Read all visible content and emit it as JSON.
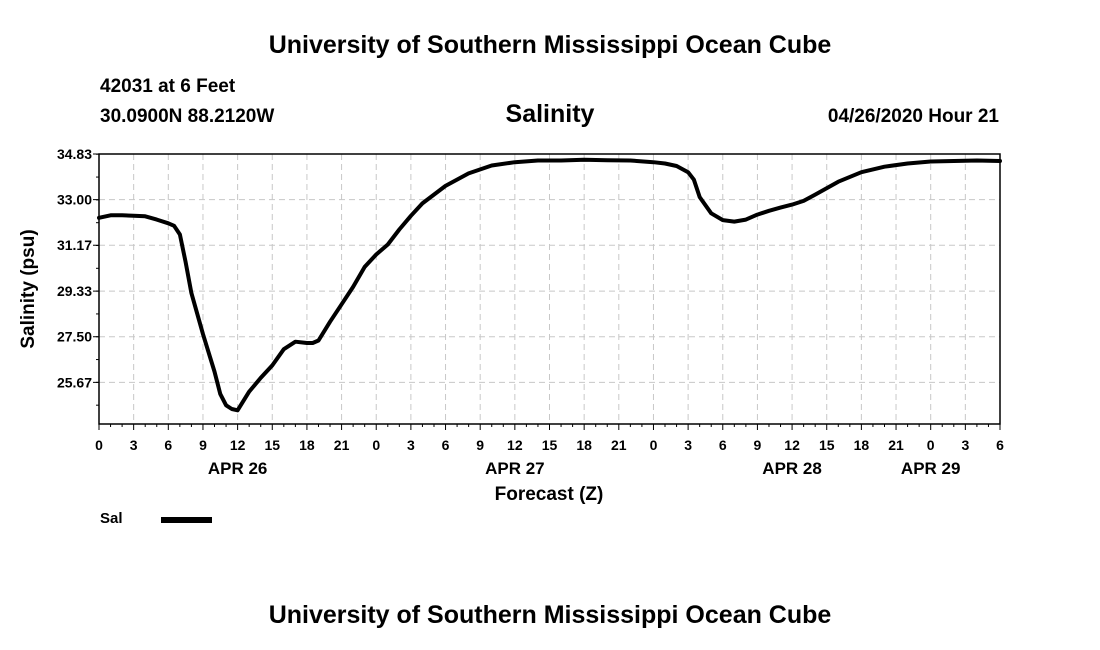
{
  "header": {
    "title_top": "University of Southern Mississippi Ocean Cube",
    "station": "42031 at 6 Feet",
    "location": "30.0900N 88.2120W",
    "variable": "Salinity",
    "timestamp": "04/26/2020 Hour 21"
  },
  "footer": {
    "title_bottom": "University of Southern Mississippi Ocean Cube"
  },
  "legend": {
    "label": "Sal",
    "color": "#000000"
  },
  "chart_data": {
    "type": "line",
    "title": "Salinity",
    "xlabel": "Forecast (Z)",
    "ylabel": "Salinity (psu)",
    "ylim": [
      24.0,
      34.83
    ],
    "xlim_hours": [
      0,
      78
    ],
    "x_start": "APR 26 00Z",
    "y_ticks": [
      "34.83",
      "33.00",
      "31.17",
      "29.33",
      "27.50",
      "25.67"
    ],
    "y_tick_values": [
      34.83,
      33.0,
      31.17,
      29.33,
      27.5,
      25.67
    ],
    "x_tick_labels": [
      "0",
      "3",
      "6",
      "9",
      "12",
      "15",
      "18",
      "21",
      "0",
      "3",
      "6",
      "9",
      "12",
      "15",
      "18",
      "21",
      "0",
      "3",
      "6",
      "9",
      "12",
      "15",
      "18",
      "21",
      "0",
      "3",
      "6"
    ],
    "date_labels": [
      {
        "text": "APR 26",
        "hour": 12
      },
      {
        "text": "APR 27",
        "hour": 36
      },
      {
        "text": "APR 28",
        "hour": 60
      },
      {
        "text": "APR 29",
        "hour": 72
      }
    ],
    "grid": true,
    "series": [
      {
        "name": "Sal",
        "x": [
          0,
          1,
          2,
          3,
          4,
          5,
          6,
          6.5,
          7,
          7.5,
          8,
          9,
          10,
          10.5,
          11,
          11.5,
          12,
          13,
          14,
          15,
          16,
          17,
          18,
          18.5,
          19,
          20,
          21,
          22,
          23,
          24,
          25,
          26,
          27,
          28,
          30,
          32,
          34,
          36,
          38,
          40,
          42,
          44,
          46,
          48,
          49,
          50,
          51,
          51.5,
          52,
          53,
          54,
          55,
          56,
          57,
          58,
          59,
          60,
          61,
          62,
          64,
          66,
          68,
          70,
          72,
          74,
          76,
          78
        ],
        "values": [
          32.27,
          32.37,
          32.37,
          32.35,
          32.33,
          32.2,
          32.05,
          31.95,
          31.6,
          30.5,
          29.25,
          27.6,
          26.1,
          25.2,
          24.75,
          24.6,
          24.55,
          25.3,
          25.85,
          26.35,
          27.0,
          27.3,
          27.25,
          27.25,
          27.35,
          28.1,
          28.8,
          29.5,
          30.3,
          30.8,
          31.2,
          31.8,
          32.35,
          32.85,
          33.55,
          34.05,
          34.37,
          34.5,
          34.57,
          34.57,
          34.6,
          34.58,
          34.57,
          34.5,
          34.45,
          34.35,
          34.1,
          33.8,
          33.1,
          32.45,
          32.18,
          32.12,
          32.2,
          32.4,
          32.55,
          32.68,
          32.8,
          32.95,
          33.2,
          33.72,
          34.1,
          34.32,
          34.45,
          34.53,
          34.55,
          34.57,
          34.55
        ]
      }
    ]
  }
}
